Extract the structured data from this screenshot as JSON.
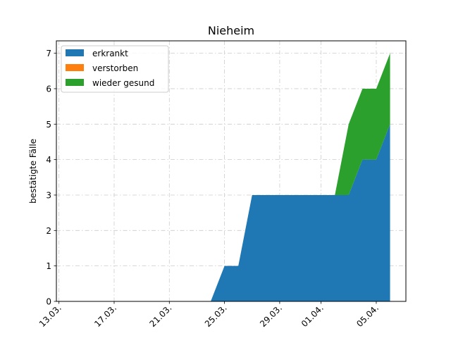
{
  "chart_data": {
    "type": "area",
    "stacked": true,
    "title": "Nieheim",
    "xlabel": "",
    "ylabel": "bestätigte Fälle",
    "x": [
      "2020-03-13",
      "2020-03-14",
      "2020-03-15",
      "2020-03-16",
      "2020-03-17",
      "2020-03-18",
      "2020-03-19",
      "2020-03-20",
      "2020-03-21",
      "2020-03-22",
      "2020-03-23",
      "2020-03-24",
      "2020-03-25",
      "2020-03-26",
      "2020-03-27",
      "2020-03-28",
      "2020-03-29",
      "2020-03-30",
      "2020-03-31",
      "2020-04-01",
      "2020-04-02",
      "2020-04-03",
      "2020-04-04",
      "2020-04-05",
      "2020-04-06"
    ],
    "xticks": [
      "2020-03-13",
      "2020-03-17",
      "2020-03-21",
      "2020-03-25",
      "2020-03-29",
      "2020-04-01",
      "2020-04-05"
    ],
    "xtick_labels": [
      "13.03.",
      "17.03.",
      "21.03.",
      "25.03.",
      "29.03.",
      "01.04.",
      "05.04."
    ],
    "yticks": [
      0,
      1,
      2,
      3,
      4,
      5,
      6,
      7
    ],
    "ylim": [
      0,
      7.35
    ],
    "grid": true,
    "legend": "top-left",
    "series": [
      {
        "name": "erkrankt",
        "color": "#1f77b4",
        "values": [
          0,
          0,
          0,
          0,
          0,
          0,
          0,
          0,
          0,
          0,
          0,
          0,
          1,
          1,
          3,
          3,
          3,
          3,
          3,
          3,
          3,
          3,
          4,
          4,
          5
        ]
      },
      {
        "name": "verstorben",
        "color": "#ff7f0e",
        "values": [
          0,
          0,
          0,
          0,
          0,
          0,
          0,
          0,
          0,
          0,
          0,
          0,
          0,
          0,
          0,
          0,
          0,
          0,
          0,
          0,
          0,
          0,
          0,
          0,
          0
        ]
      },
      {
        "name": "wieder gesund",
        "color": "#2ca02c",
        "values": [
          0,
          0,
          0,
          0,
          0,
          0,
          0,
          0,
          0,
          0,
          0,
          0,
          0,
          0,
          0,
          0,
          0,
          0,
          0,
          0,
          0,
          2,
          2,
          2,
          2
        ]
      }
    ]
  }
}
